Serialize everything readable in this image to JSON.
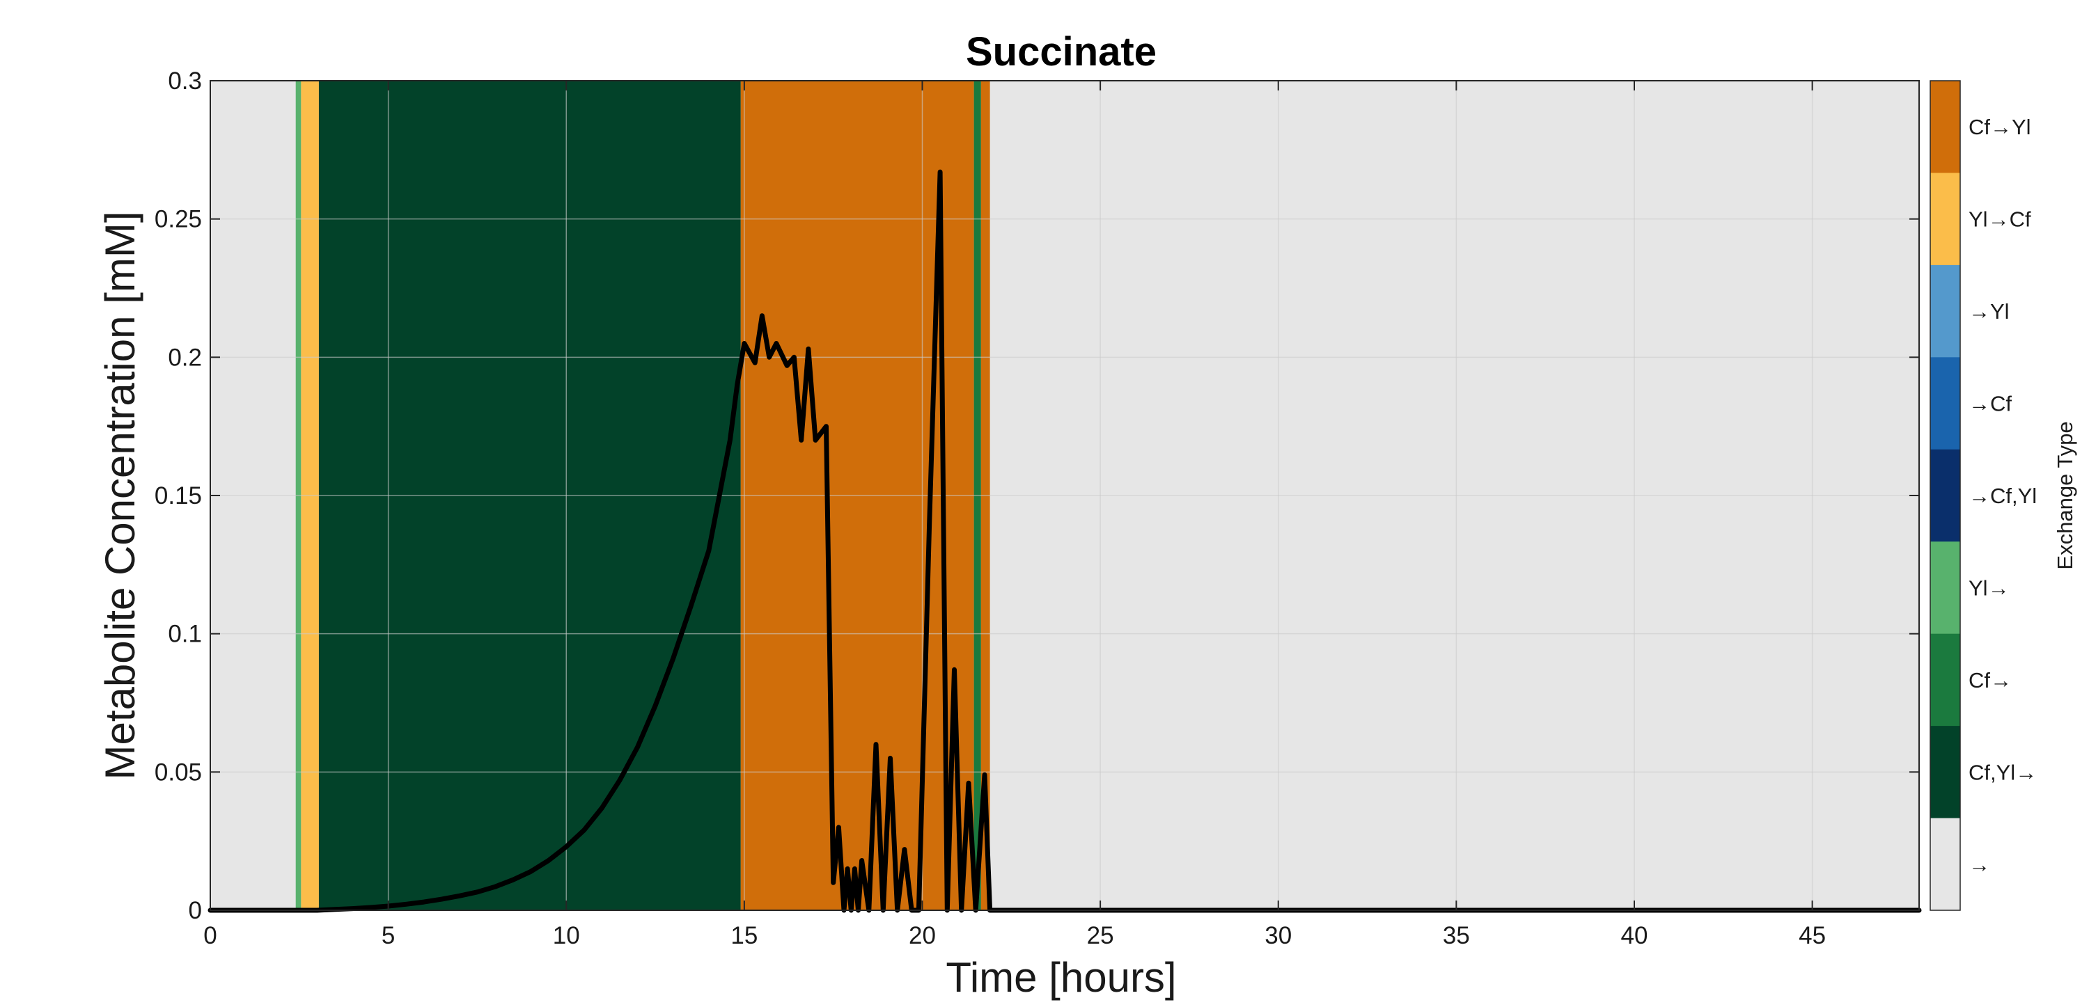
{
  "chart_data": {
    "type": "line",
    "title": "Succinate",
    "xlabel": "Time [hours]",
    "ylabel": "Metabolite Concentration [mM]",
    "xlim": [
      0,
      48
    ],
    "ylim": [
      0,
      0.3
    ],
    "grid": true,
    "plot_background": "#e6e6e6",
    "grid_color": "#cccccc",
    "x_ticks": [
      0,
      5,
      10,
      15,
      20,
      25,
      30,
      35,
      40,
      45
    ],
    "x_tick_labels": [
      "0",
      "5",
      "10",
      "15",
      "20",
      "25",
      "30",
      "35",
      "40",
      "45"
    ],
    "y_ticks": [
      0,
      0.05,
      0.1,
      0.15,
      0.2,
      0.25,
      0.3
    ],
    "y_tick_labels": [
      "0",
      "0.05",
      "0.1",
      "0.15",
      "0.2",
      "0.25",
      "0.3"
    ],
    "series": [
      {
        "color": "#000000",
        "x": [
          0,
          2,
          3,
          3.5,
          4,
          4.5,
          5,
          5.5,
          6,
          6.5,
          7,
          7.5,
          8,
          8.5,
          9,
          9.5,
          10,
          10.5,
          11,
          11.5,
          12,
          12.5,
          13,
          13.5,
          14,
          14.3,
          14.6,
          14.8,
          15,
          15.3,
          15.5,
          15.7,
          15.9,
          16.2,
          16.4,
          16.6,
          16.8,
          17.0,
          17.3,
          17.5,
          17.65,
          17.8,
          17.9,
          18.0,
          18.1,
          18.2,
          18.3,
          18.5,
          18.7,
          18.9,
          19.1,
          19.3,
          19.5,
          19.7,
          19.9,
          20.2,
          20.5,
          20.7,
          20.9,
          21.1,
          21.3,
          21.5,
          21.75,
          21.9,
          22.0,
          48
        ],
        "y": [
          0,
          0,
          0,
          0.0003,
          0.0006,
          0.001,
          0.0015,
          0.0022,
          0.003,
          0.004,
          0.0052,
          0.0066,
          0.0085,
          0.011,
          0.014,
          0.018,
          0.023,
          0.029,
          0.037,
          0.047,
          0.059,
          0.074,
          0.091,
          0.11,
          0.13,
          0.15,
          0.17,
          0.19,
          0.205,
          0.198,
          0.215,
          0.2,
          0.205,
          0.197,
          0.2,
          0.17,
          0.203,
          0.17,
          0.175,
          0.01,
          0.03,
          0.0,
          0.015,
          0.0,
          0.015,
          0.0,
          0.018,
          0.0,
          0.06,
          0.0,
          0.055,
          0.0,
          0.022,
          0.0,
          0.0,
          0.14,
          0.267,
          0.0,
          0.087,
          0.0,
          0.046,
          0.0,
          0.049,
          0.0,
          0.0,
          0.0
        ]
      }
    ],
    "bands": [
      {
        "start": 2.4,
        "end": 2.55,
        "type": "Yl→"
      },
      {
        "start": 2.55,
        "end": 3.05,
        "type": "Yl→Cf"
      },
      {
        "start": 3.05,
        "end": 14.9,
        "type": "Cf,Yl→"
      },
      {
        "start": 14.9,
        "end": 21.45,
        "type": "Cf→Yl"
      },
      {
        "start": 21.45,
        "end": 21.65,
        "type": "Cf→"
      },
      {
        "start": 21.65,
        "end": 21.9,
        "type": "Cf→Yl"
      }
    ],
    "colorbar": {
      "title": "Exchange Type",
      "categories": [
        {
          "label": "Cf→Yl",
          "color": "#d06e0a"
        },
        {
          "label": "Yl→Cf",
          "color": "#fbbd4a"
        },
        {
          "label": "→Yl",
          "color": "#5499cc"
        },
        {
          "label": "→Cf",
          "color": "#1a64ad"
        },
        {
          "label": "→Cf,Yl",
          "color": "#0a2f6b"
        },
        {
          "label": "Yl→",
          "color": "#58b26d"
        },
        {
          "label": "Cf→",
          "color": "#1b7a3e"
        },
        {
          "label": "Cf,Yl→",
          "color": "#024229"
        },
        {
          "label": "→",
          "color": "#e6e6e6"
        }
      ]
    }
  }
}
